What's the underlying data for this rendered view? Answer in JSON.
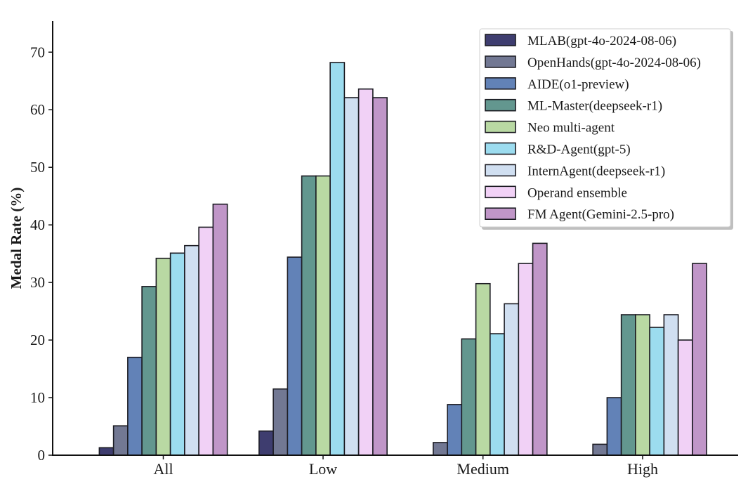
{
  "chart_data": {
    "type": "bar",
    "title": "",
    "xlabel": "",
    "ylabel": "Medal Rate (%)",
    "ylim": [
      0,
      75.4
    ],
    "yticks": [
      0,
      10,
      20,
      30,
      40,
      50,
      60,
      70
    ],
    "grid": false,
    "legend_position": "top-right",
    "categories": [
      "All",
      "Low",
      "Medium",
      "High"
    ],
    "series": [
      {
        "name": "MLAB(gpt-4o-2024-08-06)",
        "color": "#3e3d6f",
        "values": [
          1.3,
          4.2,
          0.0,
          0.0
        ]
      },
      {
        "name": "OpenHands(gpt-4o-2024-08-06)",
        "color": "#727893",
        "values": [
          5.1,
          11.5,
          2.2,
          1.9
        ]
      },
      {
        "name": "AIDE(o1-preview)",
        "color": "#6282b7",
        "values": [
          17.0,
          34.4,
          8.8,
          10.0
        ]
      },
      {
        "name": "ML-Master(deepseek-r1)",
        "color": "#63978f",
        "values": [
          29.3,
          48.5,
          20.2,
          24.4
        ]
      },
      {
        "name": "Neo multi-agent",
        "color": "#b9d9a3",
        "values": [
          34.2,
          48.5,
          29.8,
          24.4
        ]
      },
      {
        "name": "R&D-Agent(gpt-5)",
        "color": "#9cdcef",
        "values": [
          35.1,
          68.2,
          21.1,
          22.2
        ]
      },
      {
        "name": "InternAgent(deepseek-r1)",
        "color": "#d0dff1",
        "values": [
          36.4,
          62.1,
          26.3,
          24.4
        ]
      },
      {
        "name": "Operand ensemble",
        "color": "#f1d1f6",
        "values": [
          39.6,
          63.6,
          33.3,
          20.0
        ]
      },
      {
        "name": "FM Agent(Gemini-2.5-pro)",
        "color": "#c096c8",
        "values": [
          43.6,
          62.1,
          36.8,
          33.3
        ]
      }
    ]
  }
}
